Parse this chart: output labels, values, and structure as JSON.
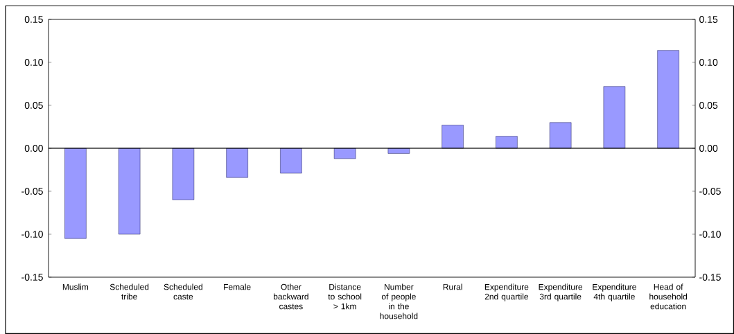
{
  "chart_data": {
    "type": "bar",
    "categories": [
      "Muslim",
      "Scheduled tribe",
      "Scheduled caste",
      "Female",
      "Other backward castes",
      "Distance to school > 1km",
      "Number of people in the household",
      "Rural",
      "Expenditure 2nd quartile",
      "Expenditure 3rd quartile",
      "Expenditure 4th quartile",
      "Head of household education"
    ],
    "values": [
      -0.105,
      -0.1,
      -0.06,
      -0.034,
      -0.029,
      -0.012,
      -0.006,
      0.027,
      0.014,
      0.03,
      0.072,
      0.114
    ],
    "color": "#9999ff",
    "ylim": [
      -0.15,
      0.15
    ],
    "yticks": [
      {
        "value": -0.15,
        "label": "-0.15"
      },
      {
        "value": -0.1,
        "label": "-0.10"
      },
      {
        "value": -0.05,
        "label": "-0.05"
      },
      {
        "value": 0,
        "label": "0.00"
      },
      {
        "value": 0.05,
        "label": "0.05"
      },
      {
        "value": 0.1,
        "label": "0.10"
      },
      {
        "value": 0.15,
        "label": "0.15"
      }
    ],
    "y2lim": [
      -0.15,
      0.15
    ],
    "y2ticks": [
      {
        "value": -0.15,
        "label": "-0.15"
      },
      {
        "value": -0.1,
        "label": "-0.10"
      },
      {
        "value": -0.05,
        "label": "-0.05"
      },
      {
        "value": 0,
        "label": "0.00"
      },
      {
        "value": 0.05,
        "label": "0.05"
      },
      {
        "value": 0.1,
        "label": "0.10"
      },
      {
        "value": 0.15,
        "label": "0.15"
      }
    ],
    "ref_lines": [
      {
        "axis": "y",
        "value": 0,
        "color": "#000000"
      }
    ]
  }
}
